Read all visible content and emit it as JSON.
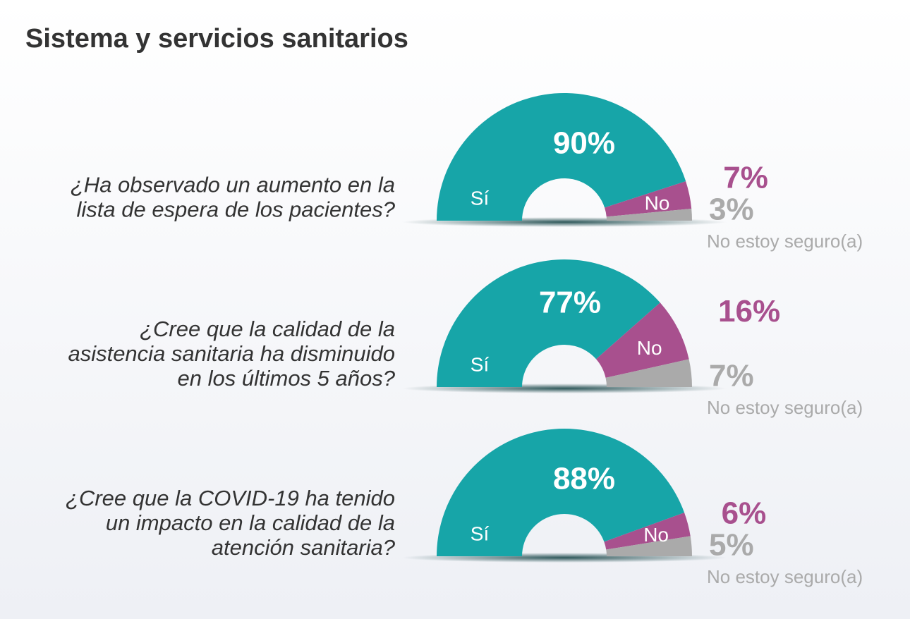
{
  "title": "Sistema y servicios sanitarios",
  "chart_data": [
    {
      "type": "half-donut",
      "question": [
        "¿Ha observado un aumento en la",
        "lista de espera de los pacientes?"
      ],
      "categories": [
        "Sí",
        "No",
        "No estoy seguro(a)"
      ],
      "values": [
        90,
        7,
        3
      ],
      "value_labels": [
        "90%",
        "7%",
        "3%"
      ],
      "colors": [
        "#17a5a8",
        "#a8508e",
        "#aaaaaa"
      ]
    },
    {
      "type": "half-donut",
      "question": [
        "¿Cree que la calidad de la",
        "asistencia sanitaria ha disminuido",
        "en los últimos 5 años?"
      ],
      "categories": [
        "Sí",
        "No",
        "No estoy seguro(a)"
      ],
      "values": [
        77,
        16,
        7
      ],
      "value_labels": [
        "77%",
        "16%",
        "7%"
      ],
      "colors": [
        "#17a5a8",
        "#a8508e",
        "#aaaaaa"
      ]
    },
    {
      "type": "half-donut",
      "question": [
        "¿Cree que la COVID-19 ha tenido",
        "un impacto en la calidad de la",
        "atención sanitaria?"
      ],
      "categories": [
        "Sí",
        "No",
        "No estoy seguro(a)"
      ],
      "values": [
        88,
        6,
        5
      ],
      "value_labels": [
        "88%",
        "6%",
        "5%"
      ],
      "colors": [
        "#17a5a8",
        "#a8508e",
        "#aaaaaa"
      ]
    }
  ]
}
